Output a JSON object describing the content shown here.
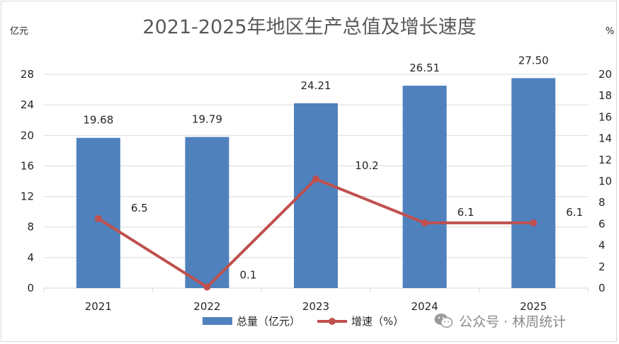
{
  "chart_data": {
    "type": "bar",
    "title": "2021-2025年地区生产总值及增长速度",
    "y_left_unit": "亿元",
    "y_right_unit": "%",
    "categories": [
      "2021",
      "2022",
      "2023",
      "2024",
      "2025"
    ],
    "ylim_left": [
      0,
      28
    ],
    "yticks_left": [
      "0",
      "4",
      "8",
      "12",
      "16",
      "20",
      "24",
      "28"
    ],
    "ylim_right": [
      0,
      20
    ],
    "yticks_right": [
      "0",
      "2",
      "4",
      "6",
      "8",
      "10",
      "12",
      "14",
      "16",
      "18",
      "20"
    ],
    "series": [
      {
        "name": "总量（亿元）",
        "kind": "bar",
        "axis": "left",
        "color": "#4f81bd",
        "values": [
          19.68,
          19.79,
          24.21,
          26.51,
          27.5
        ],
        "labels": [
          "19.68",
          "19.79",
          "24.21",
          "26.51",
          "27.50"
        ]
      },
      {
        "name": "增速（%）",
        "kind": "line",
        "axis": "right",
        "color": "#c0504d",
        "values": [
          6.5,
          0.1,
          10.2,
          6.1,
          6.1
        ],
        "labels": [
          "6.5",
          "0.1",
          "10.2",
          "6.1",
          "6.1"
        ]
      }
    ],
    "grid": true,
    "legend": "bottom"
  },
  "watermark": {
    "icon": "wechat-icon",
    "text": "公众号 · 林周统计"
  }
}
